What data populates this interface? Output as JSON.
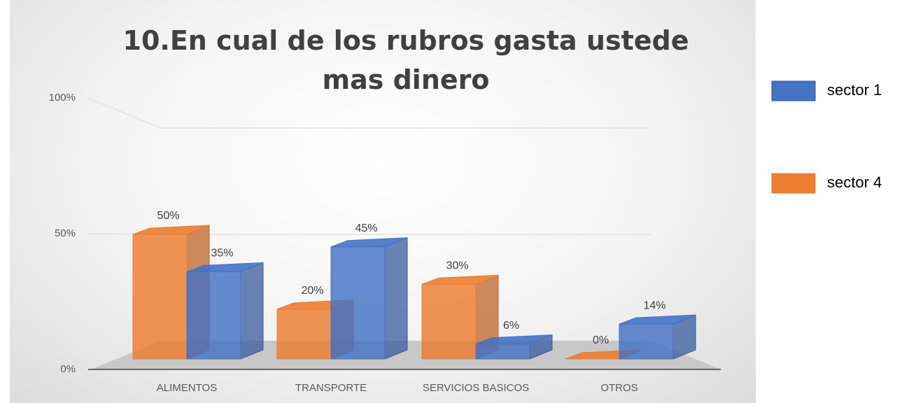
{
  "chart_data": {
    "type": "bar3d",
    "title": "10.En cual de los rubros gasta ustede mas dinero",
    "categories": [
      "ALIMENTOS",
      "TRANSPORTE",
      "SERVICIOS BASICOS",
      "OTROS"
    ],
    "series": [
      {
        "name": "sector 1",
        "color": "#4472c4",
        "values": [
          35,
          45,
          6,
          14
        ],
        "value_labels": [
          "35%",
          "45%",
          "6%",
          "14%"
        ]
      },
      {
        "name": "sector 4",
        "color": "#ed7d31",
        "values": [
          50,
          20,
          30,
          0
        ],
        "value_labels": [
          "50%",
          "20%",
          "30%",
          "0%"
        ]
      }
    ],
    "ylim": [
      0,
      100
    ],
    "yticks": [
      {
        "value": 0,
        "label": "0%"
      },
      {
        "value": 50,
        "label": "50%"
      },
      {
        "value": 100,
        "label": "100%"
      }
    ],
    "grid": true,
    "legend": "right"
  }
}
